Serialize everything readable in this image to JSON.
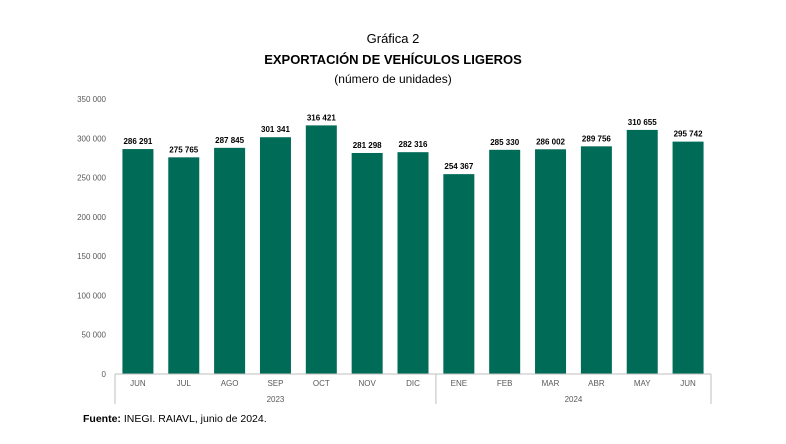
{
  "header": {
    "figure_label": "Gráfica 2",
    "title": "EXPORTACIÓN DE VEHÍCULOS LIGEROS",
    "subtitle": "(número de unidades)"
  },
  "footer": {
    "source_label": "Fuente:",
    "source_text": " INEGI. RAIAVL, junio de 2024."
  },
  "chart_data": {
    "type": "bar",
    "title": "EXPORTACIÓN DE VEHÍCULOS LIGEROS",
    "subtitle": "(número de unidades)",
    "categories": [
      "JUN",
      "JUL",
      "AGO",
      "SEP",
      "OCT",
      "NOV",
      "DIC",
      "ENE",
      "FEB",
      "MAR",
      "ABR",
      "MAY",
      "JUN"
    ],
    "values": [
      286291,
      275765,
      287845,
      301341,
      316421,
      281298,
      282316,
      254367,
      285330,
      286002,
      289756,
      310655,
      295742
    ],
    "data_labels": [
      "286 291",
      "275 765",
      "287 845",
      "301 341",
      "316 421",
      "281 298",
      "282 316",
      "254 367",
      "285 330",
      "286 002",
      "289 756",
      "310 655",
      "295 742"
    ],
    "year_groups": [
      {
        "label": "2023",
        "from": 0,
        "to": 6
      },
      {
        "label": "2024",
        "from": 7,
        "to": 12
      }
    ],
    "ylim": [
      0,
      350000
    ],
    "yticks": [
      0,
      50000,
      100000,
      150000,
      200000,
      250000,
      300000,
      350000
    ],
    "ytick_labels": [
      "0",
      "50 000",
      "100 000",
      "150 000",
      "200 000",
      "250 000",
      "300 000",
      "350 000"
    ],
    "xlabel": "",
    "ylabel": "",
    "grid": false,
    "legend": "none",
    "bar_color": "#006B56"
  }
}
